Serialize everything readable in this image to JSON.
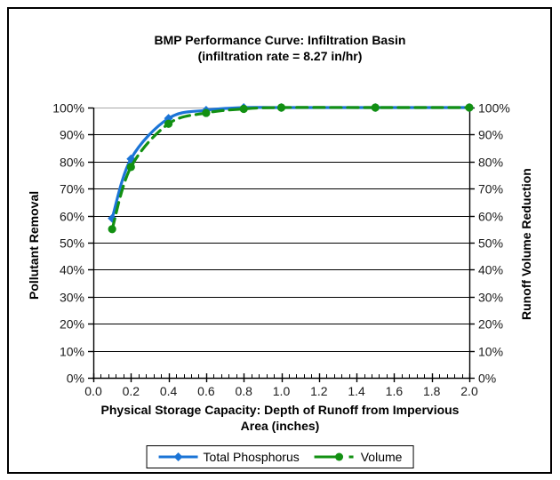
{
  "chart_data": {
    "type": "line",
    "title_line1": "BMP Performance Curve: Infiltration Basin",
    "title_line2": "(infiltration rate = 8.27 in/hr)",
    "x_axis": {
      "label_line1": "Physical Storage Capacity: Depth of Runoff from Impervious",
      "label_line2": "Area (inches)",
      "min": 0.0,
      "max": 2.0,
      "major_step": 0.2,
      "minor_step": 0.04,
      "tick_labels": [
        "0.0",
        "0.2",
        "0.4",
        "0.6",
        "0.8",
        "1.0",
        "1.2",
        "1.4",
        "1.6",
        "1.8",
        "2.0"
      ]
    },
    "y_axis_left": {
      "label": "Pollutant Removal",
      "min": 0,
      "max": 100,
      "major_step": 10,
      "tick_labels": [
        "0%",
        "10%",
        "20%",
        "30%",
        "40%",
        "50%",
        "60%",
        "70%",
        "80%",
        "90%",
        "100%"
      ]
    },
    "y_axis_right": {
      "label": "Runoff Volume Reduction",
      "min": 0,
      "max": 100,
      "major_step": 10,
      "tick_labels": [
        "0%",
        "10%",
        "20%",
        "30%",
        "40%",
        "50%",
        "60%",
        "70%",
        "80%",
        "90%",
        "100%"
      ]
    },
    "x": [
      0.1,
      0.2,
      0.4,
      0.6,
      0.8,
      1.0,
      1.5,
      2.0
    ],
    "series": [
      {
        "name": "Total Phosphorus",
        "color": "#1b74d6",
        "marker": "diamond",
        "line_style": "solid",
        "values": [
          59,
          81,
          96,
          99,
          100,
          100,
          100,
          100
        ]
      },
      {
        "name": "Volume",
        "color": "#129012",
        "marker": "circle",
        "line_style": "dashed",
        "values": [
          55,
          78,
          94,
          98,
          99.5,
          100,
          100,
          100
        ]
      }
    ],
    "grid": true,
    "gridline_color": "#000000",
    "gridline_top_color": "#a9a9a9",
    "axis_color": "#000000",
    "tick_label_color": "#1a1a1a",
    "legend_position": "bottom"
  }
}
